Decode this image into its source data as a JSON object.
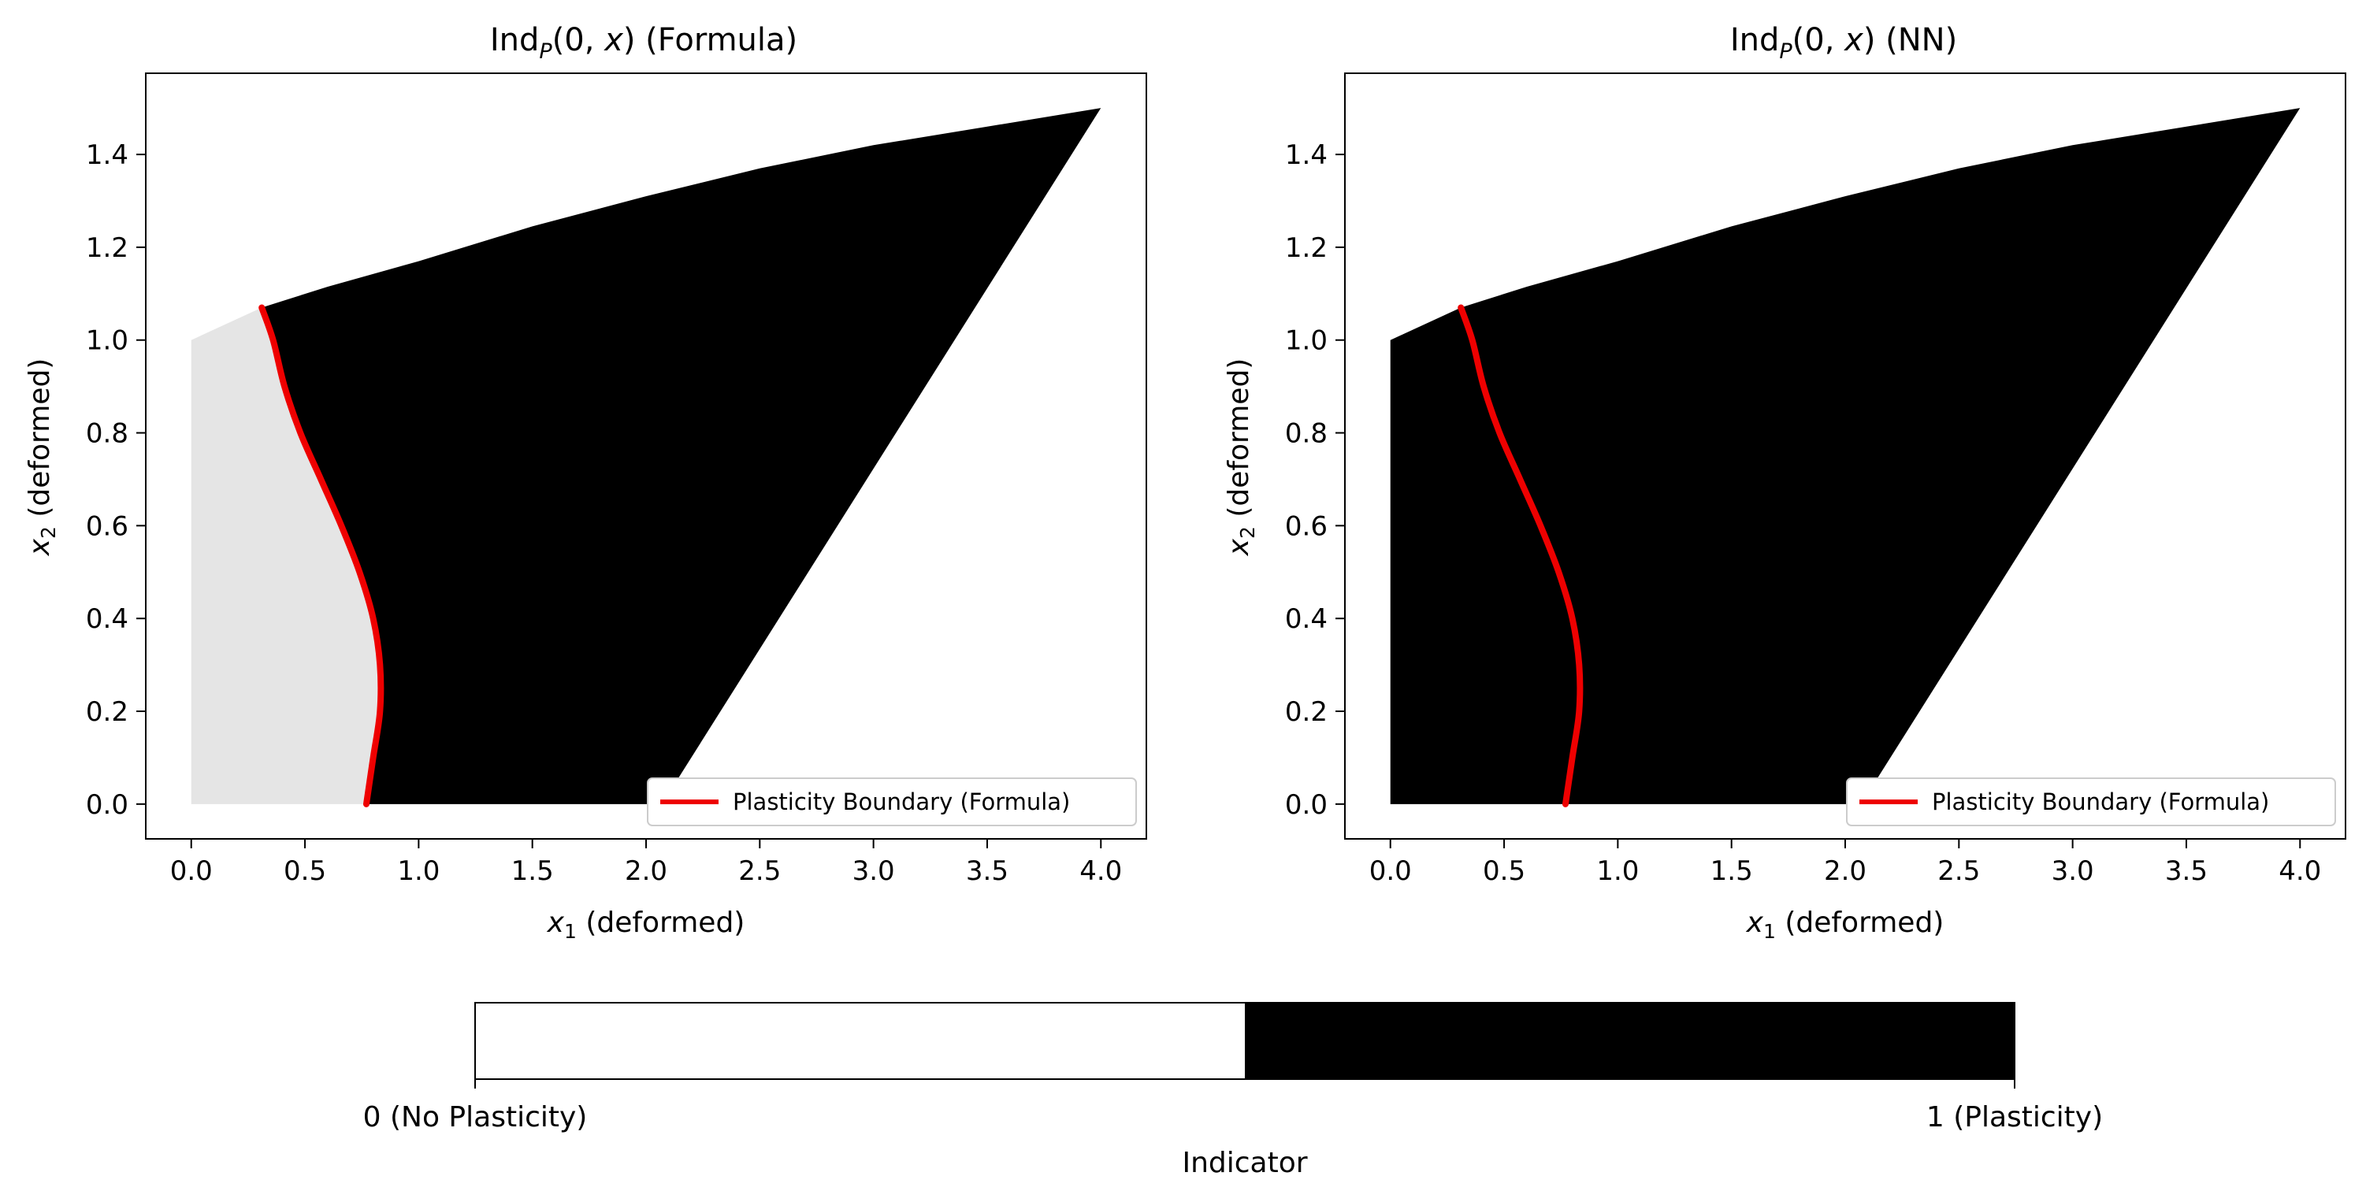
{
  "chart_data": [
    {
      "type": "area",
      "panel": "formula",
      "title_parts": [
        "Ind",
        "P",
        "(0, ",
        "x",
        ") (Formula)"
      ],
      "xlabel_parts": [
        "x",
        "1",
        " (deformed)"
      ],
      "ylabel_parts": [
        "x",
        "2",
        " (deformed)"
      ],
      "xlim": [
        -0.2,
        4.2
      ],
      "ylim": [
        -0.075,
        1.575
      ],
      "xticks": [
        "0.0",
        "0.5",
        "1.0",
        "1.5",
        "2.0",
        "2.5",
        "3.0",
        "3.5",
        "4.0"
      ],
      "yticks": [
        "0.0",
        "0.2",
        "0.4",
        "0.6",
        "0.8",
        "1.0",
        "1.2",
        "1.4"
      ],
      "domain": {
        "description_points": [
          [
            0,
            0
          ],
          [
            0,
            1.0
          ],
          [
            0.31,
            1.07
          ],
          [
            1.0,
            1.17
          ],
          [
            2.0,
            1.31
          ],
          [
            3.0,
            1.42
          ],
          [
            4.0,
            1.5
          ],
          [
            2.07,
            0
          ]
        ],
        "top_edge": [
          [
            0,
            1.0
          ],
          [
            0.31,
            1.07
          ],
          [
            0.6,
            1.115
          ],
          [
            1.0,
            1.17
          ],
          [
            1.5,
            1.245
          ],
          [
            2.0,
            1.31
          ],
          [
            2.5,
            1.37
          ],
          [
            3.0,
            1.42
          ],
          [
            3.5,
            1.46
          ],
          [
            4.0,
            1.5
          ]
        ],
        "right_edge": [
          [
            4.0,
            1.5
          ],
          [
            2.07,
            0
          ]
        ]
      },
      "region_no_plasticity_color": "#e5e5e5",
      "region_plasticity_color": "#000000",
      "boundary": {
        "name": "Plasticity Boundary (Formula)",
        "color": "#ee0000",
        "points": [
          [
            0.77,
            0.0
          ],
          [
            0.8,
            0.1
          ],
          [
            0.83,
            0.2
          ],
          [
            0.83,
            0.3
          ],
          [
            0.8,
            0.4
          ],
          [
            0.74,
            0.5
          ],
          [
            0.66,
            0.6
          ],
          [
            0.57,
            0.7
          ],
          [
            0.48,
            0.8
          ],
          [
            0.41,
            0.9
          ],
          [
            0.36,
            1.0
          ],
          [
            0.31,
            1.07
          ]
        ]
      },
      "legend_position": "lower right"
    },
    {
      "type": "area",
      "panel": "nn",
      "title_parts": [
        "Ind",
        "P",
        "(0, ",
        "x",
        ") (NN)"
      ],
      "xlabel_parts": [
        "x",
        "1",
        " (deformed)"
      ],
      "ylabel_parts": [
        "x",
        "2",
        " (deformed)"
      ],
      "xlim": [
        -0.2,
        4.2
      ],
      "ylim": [
        -0.075,
        1.575
      ],
      "xticks": [
        "0.0",
        "0.5",
        "1.0",
        "1.5",
        "2.0",
        "2.5",
        "3.0",
        "3.5",
        "4.0"
      ],
      "yticks": [
        "0.0",
        "0.2",
        "0.4",
        "0.6",
        "0.8",
        "1.0",
        "1.2",
        "1.4"
      ],
      "region_plasticity_color": "#000000",
      "boundary": {
        "name": "Plasticity Boundary (Formula)",
        "color": "#ee0000",
        "points": [
          [
            0.77,
            0.0
          ],
          [
            0.8,
            0.1
          ],
          [
            0.83,
            0.2
          ],
          [
            0.83,
            0.3
          ],
          [
            0.8,
            0.4
          ],
          [
            0.74,
            0.5
          ],
          [
            0.66,
            0.6
          ],
          [
            0.57,
            0.7
          ],
          [
            0.48,
            0.8
          ],
          [
            0.41,
            0.9
          ],
          [
            0.36,
            1.0
          ],
          [
            0.31,
            1.07
          ]
        ]
      },
      "legend_position": "lower right"
    }
  ],
  "colorbar": {
    "label": "Indicator",
    "tick_low": "0 (No Plasticity)",
    "tick_high": "1 (Plasticity)",
    "colors": [
      "#ffffff",
      "#000000"
    ],
    "orientation": "horizontal"
  }
}
